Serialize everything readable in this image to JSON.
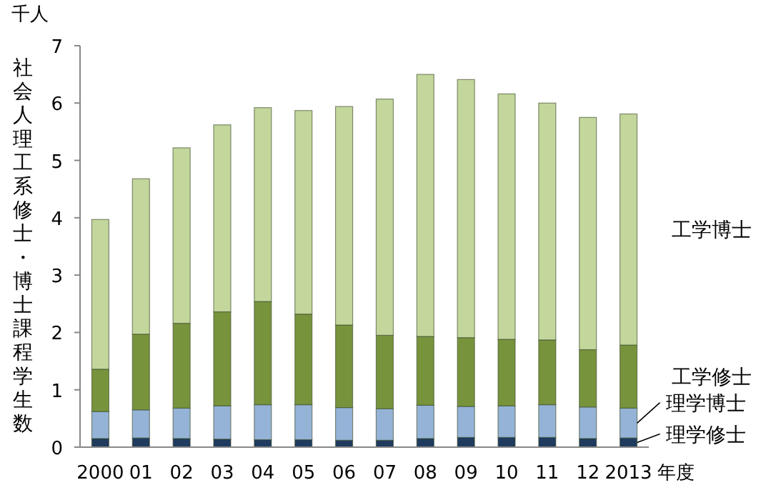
{
  "chart_data": {
    "type": "bar",
    "stacked": true,
    "ylabel": "社会人理工系修士・博士課程学生数",
    "xlabel": "年度",
    "annotations": [
      "千人"
    ],
    "categories": [
      "2000",
      "01",
      "02",
      "03",
      "04",
      "05",
      "06",
      "07",
      "08",
      "09",
      "10",
      "11",
      "12",
      "2013"
    ],
    "ylim": [
      0,
      7
    ],
    "yticks": [
      0,
      1,
      2,
      3,
      4,
      5,
      6,
      7
    ],
    "series": [
      {
        "name": "理学修士",
        "color": "#1f3b5f",
        "values": [
          0.15,
          0.16,
          0.15,
          0.14,
          0.13,
          0.13,
          0.12,
          0.12,
          0.15,
          0.17,
          0.17,
          0.17,
          0.15,
          0.16
        ]
      },
      {
        "name": "理学博士",
        "color": "#95b3d7",
        "values": [
          0.47,
          0.49,
          0.53,
          0.58,
          0.61,
          0.61,
          0.57,
          0.55,
          0.58,
          0.54,
          0.55,
          0.57,
          0.55,
          0.52
        ]
      },
      {
        "name": "工学修士",
        "color": "#77933c",
        "values": [
          0.74,
          1.32,
          1.48,
          1.64,
          1.8,
          1.58,
          1.44,
          1.28,
          1.2,
          1.2,
          1.16,
          1.13,
          1.0,
          1.1
        ]
      },
      {
        "name": "工学博士",
        "color": "#c3d69b",
        "values": [
          2.61,
          2.71,
          3.06,
          3.26,
          3.38,
          3.55,
          3.81,
          4.12,
          4.57,
          4.5,
          4.28,
          4.13,
          4.05,
          4.03
        ]
      }
    ]
  }
}
